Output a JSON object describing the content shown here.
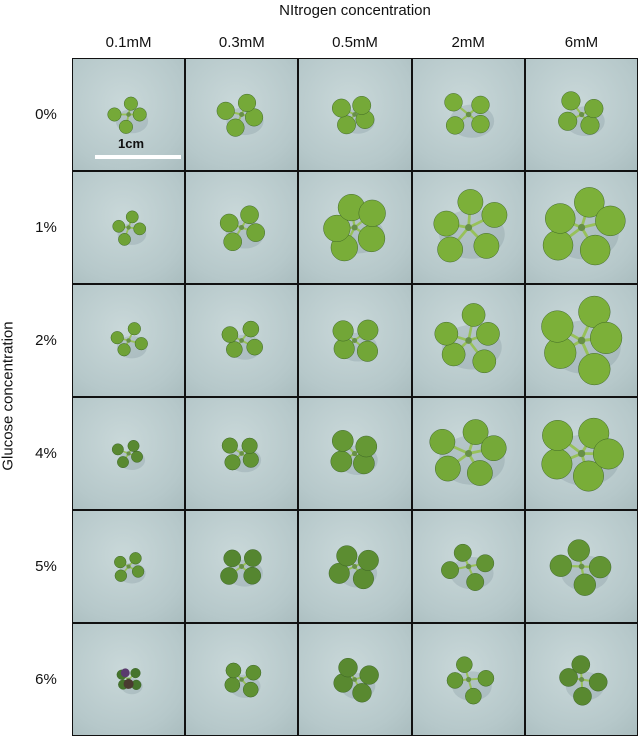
{
  "figure": {
    "column_title": "NItrogen concentration",
    "row_title": "Glucose concentration",
    "columns": [
      "0.1mM",
      "0.3mM",
      "0.5mM",
      "2mM",
      "6mM"
    ],
    "rows": [
      "0%",
      "1%",
      "2%",
      "4%",
      "5%",
      "6%"
    ],
    "scale_bar_label": "1cm",
    "colors": {
      "plate_background": "#b9cacc",
      "leaf_light": "#7fb43a",
      "leaf_dark": "#3f6d2a",
      "stressed_purple": "#5a3a6e",
      "grid_line": "#111111"
    },
    "seedlings": [
      [
        {
          "size": 0.3,
          "tone": 0.15,
          "purple": 0
        },
        {
          "size": 0.38,
          "tone": 0.15,
          "purple": 0
        },
        {
          "size": 0.32,
          "tone": 0.15,
          "purple": 0
        },
        {
          "size": 0.5,
          "tone": 0.1,
          "purple": 0
        },
        {
          "size": 0.42,
          "tone": 0.15,
          "purple": 0
        }
      ],
      [
        {
          "size": 0.24,
          "tone": 0.25,
          "purple": 0
        },
        {
          "size": 0.4,
          "tone": 0.2,
          "purple": 0
        },
        {
          "size": 0.62,
          "tone": 0.1,
          "purple": 0
        },
        {
          "size": 0.85,
          "tone": 0.05,
          "purple": 0
        },
        {
          "size": 0.88,
          "tone": 0.05,
          "purple": 0
        }
      ],
      [
        {
          "size": 0.26,
          "tone": 0.25,
          "purple": 0
        },
        {
          "size": 0.32,
          "tone": 0.25,
          "purple": 0
        },
        {
          "size": 0.4,
          "tone": 0.2,
          "purple": 0
        },
        {
          "size": 0.75,
          "tone": 0.1,
          "purple": 0
        },
        {
          "size": 0.95,
          "tone": 0.05,
          "purple": 0
        }
      ],
      [
        {
          "size": 0.2,
          "tone": 0.6,
          "purple": 0
        },
        {
          "size": 0.3,
          "tone": 0.45,
          "purple": 0
        },
        {
          "size": 0.42,
          "tone": 0.4,
          "purple": 0
        },
        {
          "size": 0.85,
          "tone": 0.15,
          "purple": 0
        },
        {
          "size": 0.9,
          "tone": 0.1,
          "purple": 0
        }
      ],
      [
        {
          "size": 0.22,
          "tone": 0.45,
          "purple": 0
        },
        {
          "size": 0.36,
          "tone": 0.65,
          "purple": 0
        },
        {
          "size": 0.4,
          "tone": 0.55,
          "purple": 0
        },
        {
          "size": 0.48,
          "tone": 0.45,
          "purple": 0
        },
        {
          "size": 0.55,
          "tone": 0.45,
          "purple": 0
        }
      ],
      [
        {
          "size": 0.12,
          "tone": 0.9,
          "purple": 1
        },
        {
          "size": 0.28,
          "tone": 0.5,
          "purple": 0
        },
        {
          "size": 0.34,
          "tone": 0.6,
          "purple": 0
        },
        {
          "size": 0.42,
          "tone": 0.4,
          "purple": 0
        },
        {
          "size": 0.4,
          "tone": 0.6,
          "purple": 0
        }
      ]
    ]
  }
}
